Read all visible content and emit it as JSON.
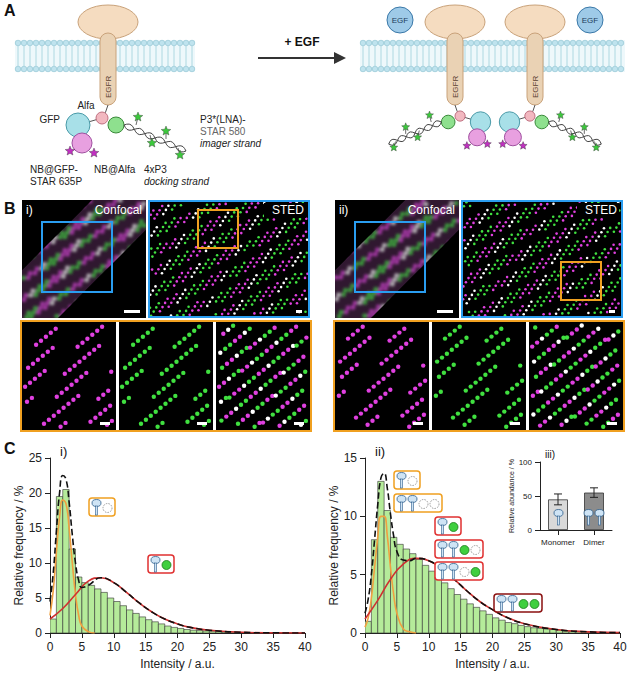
{
  "figure": {
    "A": {
      "letter": "A",
      "receptor": "EGFR",
      "gfp": "GFP",
      "alfa": "Alfa",
      "nb_gfp": [
        "NB@GFP-",
        "STAR 635P"
      ],
      "nb_alfa": "NB@Alfa",
      "docking": [
        "4xP3",
        "docking strand"
      ],
      "imager": [
        "P3*(LNA)-",
        "STAR 580",
        "imager strand"
      ],
      "stimulus": "+ EGF",
      "ligand": "EGF"
    },
    "B": {
      "letter": "B",
      "panels": [
        {
          "label": "i)",
          "left": "Confocal",
          "right": "STED"
        },
        {
          "label": "ii)",
          "left": "Confocal",
          "right": "STED"
        }
      ]
    },
    "C": {
      "letter": "C"
    }
  },
  "chart_data": [
    {
      "type": "histogram",
      "title": "i)",
      "bins": [
        0,
        1,
        2,
        3,
        4,
        5,
        6,
        7,
        8,
        9,
        10,
        11,
        12,
        13,
        14,
        15,
        16,
        17,
        18,
        19,
        20,
        21,
        22,
        23,
        24,
        25,
        26,
        27,
        28,
        29,
        30,
        31,
        32,
        33,
        34,
        35,
        36,
        37,
        38,
        39,
        40
      ],
      "counts": [
        2.0,
        19.5,
        20.5,
        12.0,
        8.0,
        7.2,
        6.8,
        6.3,
        5.8,
        5.0,
        4.5,
        3.9,
        3.3,
        2.8,
        2.3,
        1.9,
        1.6,
        1.3,
        1.0,
        0.8,
        0.65,
        0.5,
        0.4,
        0.35,
        0.3,
        0.25,
        0.2,
        0.15,
        0.12,
        0.1,
        0.08,
        0.06,
        0.05,
        0.04,
        0.03,
        0.02,
        0.02,
        0.01,
        0.01,
        0.0
      ],
      "color": "#b5eb9a",
      "xlim": [
        0,
        40
      ],
      "xticks": [
        0,
        5,
        10,
        15,
        20,
        25,
        30,
        35,
        40
      ],
      "ylim": [
        0,
        25
      ],
      "yticks": [
        0,
        5,
        10,
        15,
        20,
        25
      ],
      "x_label": "Intensity / a.u.",
      "y_label": "Relative frequency / %",
      "series": [
        {
          "type": "line",
          "color": "#f0a040",
          "line_style": "solid",
          "x": [
            0,
            0.5,
            1,
            1.5,
            2,
            2.5,
            3,
            3.5,
            4,
            4.5,
            5,
            6,
            7
          ],
          "values": [
            2.5,
            6,
            11.5,
            16.5,
            19,
            18.5,
            15,
            10,
            5.5,
            2.5,
            1,
            0.2,
            0
          ]
        },
        {
          "type": "line",
          "color": "#d03030",
          "line_style": "solid",
          "x": [
            0,
            2,
            4,
            6,
            8,
            10,
            12,
            14,
            16,
            18,
            20,
            22,
            25,
            30,
            35,
            40
          ],
          "values": [
            2,
            3.5,
            5.5,
            7.4,
            7.9,
            7.2,
            5.8,
            4.3,
            3,
            2,
            1.3,
            0.8,
            0.4,
            0.1,
            0.02,
            0
          ]
        },
        {
          "type": "line",
          "color": "#111111",
          "line_style": "dashed",
          "x": [
            0,
            0.5,
            1,
            1.5,
            2,
            2.5,
            3,
            3.5,
            4,
            4.5,
            5,
            6,
            8,
            10,
            12,
            14,
            16,
            18,
            20,
            22,
            25,
            30,
            35,
            40
          ],
          "values": [
            4.5,
            8.5,
            14.5,
            20,
            22.5,
            22,
            18.7,
            14,
            10,
            7.5,
            6.5,
            6.8,
            7.9,
            7.2,
            5.8,
            4.3,
            3,
            2,
            1.3,
            0.8,
            0.4,
            0.1,
            0.02,
            0
          ]
        }
      ]
    },
    {
      "type": "histogram",
      "title": "ii)",
      "bins": [
        0,
        1,
        2,
        3,
        4,
        5,
        6,
        7,
        8,
        9,
        10,
        11,
        12,
        13,
        14,
        15,
        16,
        17,
        18,
        19,
        20,
        21,
        22,
        23,
        24,
        25,
        26,
        27,
        28,
        29,
        30,
        31,
        32,
        33,
        34,
        35,
        36,
        37,
        38,
        39,
        40
      ],
      "counts": [
        1.0,
        8.0,
        13.0,
        10.5,
        8.2,
        7.6,
        7.2,
        6.8,
        6.3,
        5.8,
        5.3,
        4.8,
        4.3,
        3.8,
        3.3,
        2.9,
        2.5,
        2.2,
        1.9,
        1.6,
        1.3,
        1.1,
        0.9,
        0.8,
        0.65,
        0.55,
        0.45,
        0.4,
        0.35,
        0.3,
        0.25,
        0.2,
        0.15,
        0.12,
        0.1,
        0.08,
        0.06,
        0.04,
        0.03,
        0.02
      ],
      "color": "#b5eb9a",
      "xlim": [
        0,
        40
      ],
      "xticks": [
        0,
        5,
        10,
        15,
        20,
        25,
        30,
        35,
        40
      ],
      "ylim": [
        0,
        15
      ],
      "yticks": [
        0,
        5,
        10,
        15
      ],
      "x_label": "Intensity / a.u.",
      "y_label": "Relative frequency / %",
      "series": [
        {
          "type": "line",
          "color": "#f0a040",
          "line_style": "solid",
          "x": [
            0,
            0.5,
            1,
            1.5,
            2,
            2.5,
            3,
            3.5,
            4,
            4.5,
            5,
            6,
            7,
            8
          ],
          "values": [
            0.5,
            1.3,
            3,
            5.6,
            8.2,
            10,
            10,
            8.3,
            5.6,
            3.3,
            1.7,
            0.35,
            0.1,
            0
          ]
        },
        {
          "type": "line",
          "color": "#d03030",
          "line_style": "solid",
          "x": [
            0,
            2,
            4,
            6,
            8,
            10,
            12,
            14,
            16,
            18,
            20,
            22,
            25,
            30,
            35,
            40
          ],
          "values": [
            1.2,
            2.8,
            4.6,
            5.9,
            6.4,
            6.2,
            5.5,
            4.6,
            3.6,
            2.7,
            2,
            1.4,
            0.8,
            0.3,
            0.1,
            0.03
          ]
        },
        {
          "type": "line",
          "color": "#111111",
          "line_style": "dashed",
          "x": [
            0,
            0.5,
            1,
            1.5,
            2,
            2.5,
            3,
            3.5,
            4,
            4.5,
            5,
            6,
            7,
            8,
            10,
            12,
            14,
            16,
            18,
            20,
            22,
            25,
            30,
            35,
            40
          ],
          "values": [
            1.7,
            2.9,
            5,
            8,
            11,
            13.3,
            13.7,
            12.4,
            10.2,
            8.3,
            7,
            6.25,
            6.2,
            6.4,
            6.2,
            5.5,
            4.6,
            3.6,
            2.7,
            2,
            1.4,
            0.8,
            0.3,
            0.1,
            0.03
          ]
        }
      ]
    },
    {
      "type": "bar",
      "title": "iii)",
      "categories": [
        "Monomer",
        "Dimer"
      ],
      "values": [
        45,
        55
      ],
      "errors": [
        8,
        7
      ],
      "colors": [
        "#d9d9d9",
        "#8c8c8c"
      ],
      "ylim": [
        0,
        100
      ],
      "yticks": [
        0,
        50,
        100
      ],
      "y_label": "Relative abundance / %"
    }
  ]
}
